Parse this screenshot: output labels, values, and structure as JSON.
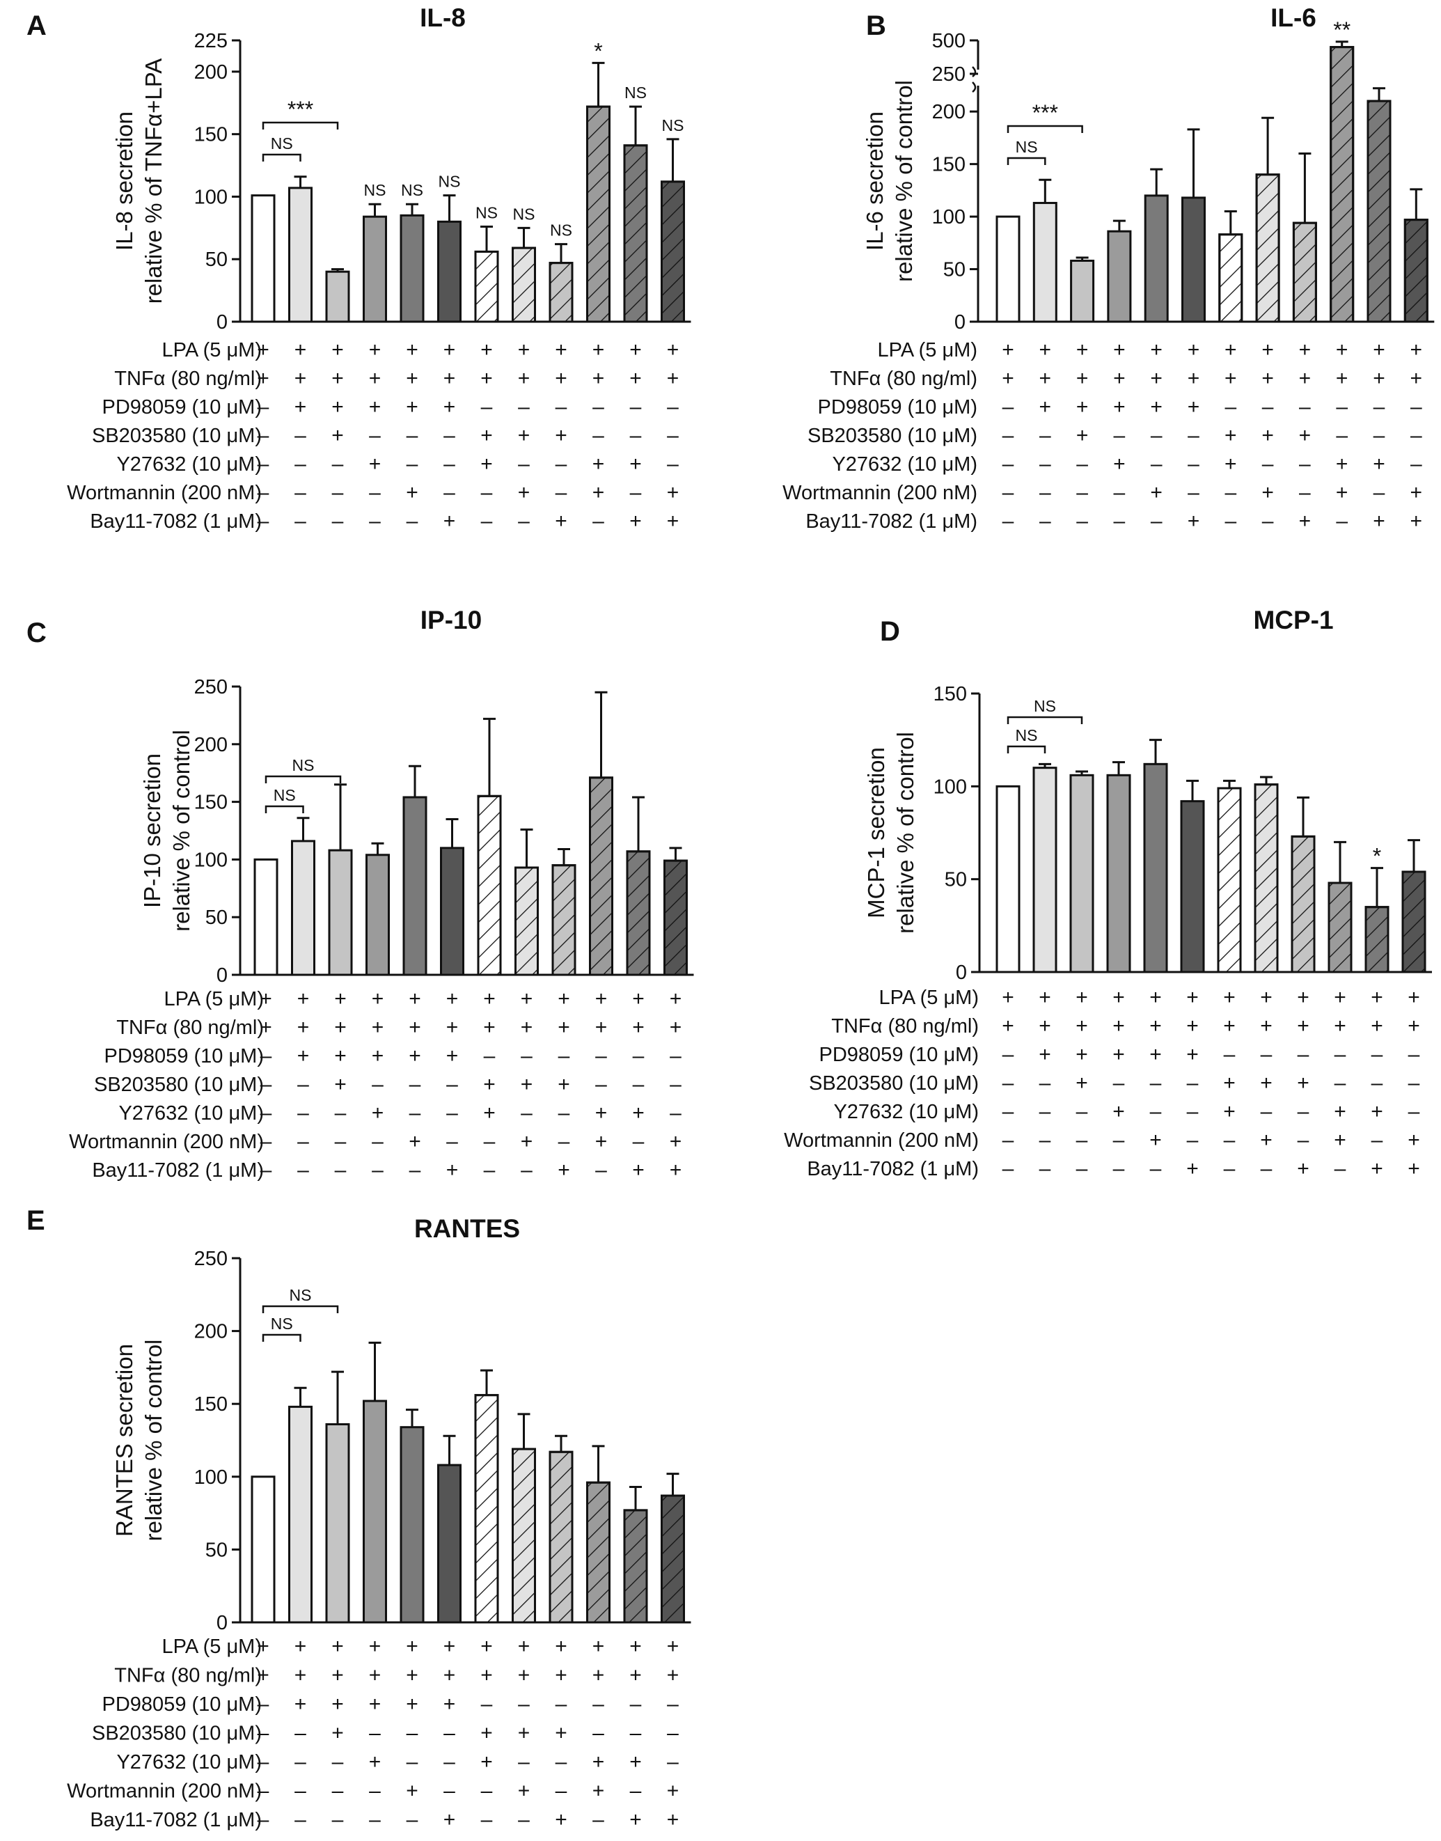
{
  "colors": {
    "white": "#ffffff",
    "light": "#e2e2e2",
    "mid_light": "#c4c4c4",
    "mid": "#9b9b9b",
    "mid_dark": "#7a7a7a",
    "dark": "#555555",
    "ink": "#111111"
  },
  "condition_rows": [
    {
      "label": "LPA (5 μM)",
      "signs": [
        "+",
        "+",
        "+",
        "+",
        "+",
        "+",
        "+",
        "+",
        "+",
        "+",
        "+",
        "+"
      ]
    },
    {
      "label": "TNFα (80 ng/ml)",
      "signs": [
        "+",
        "+",
        "+",
        "+",
        "+",
        "+",
        "+",
        "+",
        "+",
        "+",
        "+",
        "+"
      ]
    },
    {
      "label": "PD98059 (10 μM)",
      "signs": [
        "–",
        "+",
        "+",
        "+",
        "+",
        "+",
        "–",
        "–",
        "–",
        "–",
        "–",
        "–"
      ]
    },
    {
      "label": "SB203580 (10 μM)",
      "signs": [
        "–",
        "–",
        "+",
        "–",
        "–",
        "–",
        "+",
        "+",
        "+",
        "–",
        "–",
        "–"
      ]
    },
    {
      "label": "Y27632 (10 μM)",
      "signs": [
        "–",
        "–",
        "–",
        "+",
        "–",
        "–",
        "+",
        "–",
        "–",
        "+",
        "+",
        "–"
      ]
    },
    {
      "label": "Wortmannin (200 nM)",
      "signs": [
        "–",
        "–",
        "–",
        "–",
        "+",
        "–",
        "–",
        "+",
        "–",
        "+",
        "–",
        "+"
      ]
    },
    {
      "label": "Bay11-7082 (1 μM)",
      "signs": [
        "–",
        "–",
        "–",
        "–",
        "–",
        "+",
        "–",
        "–",
        "+",
        "–",
        "+",
        "+"
      ]
    }
  ],
  "bar_styles": [
    {
      "fill": "white",
      "hatched": false
    },
    {
      "fill": "light",
      "hatched": false
    },
    {
      "fill": "mid_light",
      "hatched": false
    },
    {
      "fill": "mid",
      "hatched": false
    },
    {
      "fill": "mid_dark",
      "hatched": false
    },
    {
      "fill": "dark",
      "hatched": false
    },
    {
      "fill": "white",
      "hatched": true
    },
    {
      "fill": "light",
      "hatched": true
    },
    {
      "fill": "mid_light",
      "hatched": true
    },
    {
      "fill": "mid",
      "hatched": true
    },
    {
      "fill": "mid_dark",
      "hatched": true
    },
    {
      "fill": "dark",
      "hatched": true
    }
  ],
  "chart_data": [
    {
      "panel": "A",
      "type": "bar",
      "title": "IL-8",
      "ylabel_lines": [
        "IL-8 secretion",
        "relative % of TNFα+LPA"
      ],
      "ylim": [
        0,
        225
      ],
      "yticks": [
        "0",
        "50",
        "100",
        "150",
        "200",
        "225"
      ],
      "ytick_values": [
        0,
        50,
        100,
        150,
        200,
        225
      ],
      "values": [
        101,
        107,
        40,
        84,
        85,
        80,
        56,
        59,
        47,
        172,
        141,
        112
      ],
      "errors": [
        0,
        9,
        2,
        10,
        9,
        21,
        20,
        16,
        15,
        35,
        31,
        34
      ],
      "bar_labels": [
        "",
        "",
        "",
        "NS",
        "NS",
        "NS",
        "NS",
        "NS",
        "NS",
        "*",
        "NS",
        "NS"
      ],
      "brackets": [
        {
          "from": 0,
          "to": 1,
          "label": "NS"
        },
        {
          "from": 0,
          "to": 2,
          "label": "***"
        }
      ]
    },
    {
      "panel": "B",
      "type": "bar",
      "title": "IL-6",
      "ylabel_lines": [
        "IL-6 secretion",
        "relative % of control"
      ],
      "ylim": [
        0,
        500
      ],
      "axis_break": {
        "from": 220,
        "to": 250
      },
      "yticks": [
        "0",
        "50",
        "100",
        "150",
        "200",
        "250",
        "500"
      ],
      "ytick_values": [
        0,
        50,
        100,
        150,
        200,
        250,
        500
      ],
      "values": [
        100,
        113,
        58,
        86,
        120,
        118,
        83,
        140,
        94,
        450,
        210,
        97
      ],
      "errors": [
        0,
        22,
        3,
        10,
        25,
        65,
        22,
        54,
        66,
        40,
        14,
        29
      ],
      "bar_labels": [
        "",
        "",
        "",
        "",
        "",
        "",
        "",
        "",
        "",
        "**",
        "",
        ""
      ],
      "brackets": [
        {
          "from": 0,
          "to": 1,
          "label": "NS"
        },
        {
          "from": 0,
          "to": 2,
          "label": "***"
        }
      ]
    },
    {
      "panel": "C",
      "type": "bar",
      "title": "IP-10",
      "ylabel_lines": [
        "IP-10 secretion",
        "relative % of control"
      ],
      "ylim": [
        0,
        250
      ],
      "yticks": [
        "0",
        "50",
        "100",
        "150",
        "200",
        "250"
      ],
      "ytick_values": [
        0,
        50,
        100,
        150,
        200,
        250
      ],
      "values": [
        100,
        116,
        108,
        104,
        154,
        110,
        155,
        93,
        95,
        171,
        107,
        99
      ],
      "errors": [
        0,
        20,
        57,
        10,
        27,
        25,
        67,
        33,
        14,
        74,
        47,
        11
      ],
      "bar_labels": [
        "",
        "",
        "",
        "",
        "",
        "",
        "",
        "",
        "",
        "",
        "",
        ""
      ],
      "brackets": [
        {
          "from": 0,
          "to": 1,
          "label": "NS"
        },
        {
          "from": 0,
          "to": 2,
          "label": "NS"
        }
      ]
    },
    {
      "panel": "D",
      "type": "bar",
      "title": "MCP-1",
      "ylabel_lines": [
        "MCP-1 secretion",
        "relative % of control"
      ],
      "ylim": [
        0,
        150
      ],
      "yticks": [
        "0",
        "50",
        "100",
        "150"
      ],
      "ytick_values": [
        0,
        50,
        100,
        150
      ],
      "values": [
        100,
        110,
        106,
        106,
        112,
        92,
        99,
        101,
        73,
        48,
        35,
        54
      ],
      "errors": [
        0,
        2,
        2,
        7,
        13,
        11,
        4,
        4,
        21,
        22,
        21,
        17
      ],
      "bar_labels": [
        "",
        "",
        "",
        "",
        "",
        "",
        "",
        "",
        "",
        "",
        "*",
        ""
      ],
      "brackets": [
        {
          "from": 0,
          "to": 1,
          "label": "NS"
        },
        {
          "from": 0,
          "to": 2,
          "label": "NS"
        }
      ]
    },
    {
      "panel": "E",
      "type": "bar",
      "title": "RANTES",
      "ylabel_lines": [
        "RANTES secretion",
        "relative % of control"
      ],
      "ylim": [
        0,
        250
      ],
      "yticks": [
        "0",
        "50",
        "100",
        "150",
        "200",
        "250"
      ],
      "ytick_values": [
        0,
        50,
        100,
        150,
        200,
        250
      ],
      "values": [
        100,
        148,
        136,
        152,
        134,
        108,
        156,
        119,
        117,
        96,
        77,
        87
      ],
      "errors": [
        0,
        13,
        36,
        40,
        12,
        20,
        17,
        24,
        11,
        25,
        16,
        15
      ],
      "bar_labels": [
        "",
        "",
        "",
        "",
        "",
        "",
        "",
        "",
        "",
        "",
        "",
        ""
      ],
      "brackets": [
        {
          "from": 0,
          "to": 1,
          "label": "NS"
        },
        {
          "from": 0,
          "to": 2,
          "label": "NS"
        }
      ]
    }
  ]
}
